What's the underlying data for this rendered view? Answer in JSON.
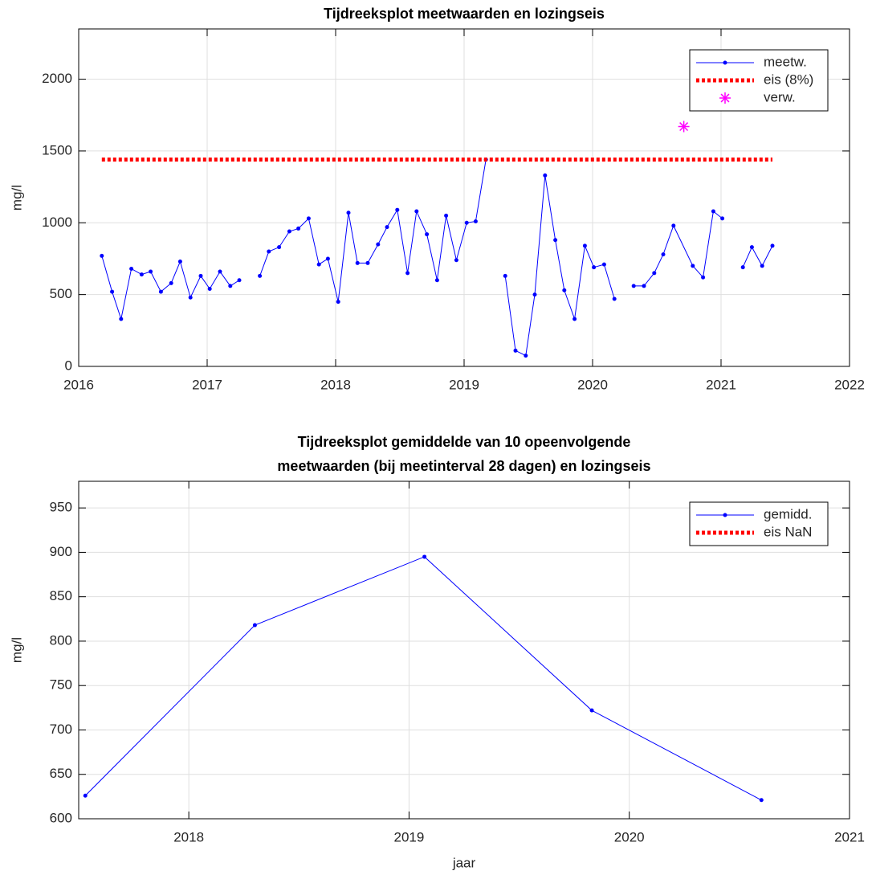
{
  "chart_data": [
    {
      "type": "line",
      "title": "Tijdreeksplot meetwaarden en lozingseis",
      "ylabel": "mg/l",
      "xlim": [
        2016,
        2022
      ],
      "xticks": [
        2016,
        2017,
        2018,
        2019,
        2020,
        2021,
        2022
      ],
      "ylim": [
        0,
        2350
      ],
      "yticks": [
        0,
        500,
        1000,
        1500,
        2000
      ],
      "grid": true,
      "legend": "northeast",
      "series": [
        {
          "name": "meetw.",
          "color": "#0000ff",
          "linestyle": "solid",
          "marker": "dot",
          "x": [
            2016.18,
            2016.26,
            2016.33,
            2016.41,
            2016.49,
            2016.56,
            2016.64,
            2016.72,
            2016.79,
            2016.87,
            2016.95,
            2017.02,
            2017.1,
            2017.18,
            2017.25,
            2017.33,
            2017.41,
            2017.48,
            2017.56,
            2017.64,
            2017.71,
            2017.79,
            2017.87,
            2017.94,
            2018.02,
            2018.1,
            2018.17,
            2018.25,
            2018.33,
            2018.4,
            2018.48,
            2018.56,
            2018.63,
            2018.71,
            2018.79,
            2018.86,
            2018.94,
            2019.02,
            2019.09,
            2019.17,
            2019.25,
            2019.32,
            2019.4,
            2019.48,
            2019.55,
            2019.63,
            2019.71,
            2019.78,
            2019.86,
            2019.94,
            2020.01,
            2020.09,
            2020.17,
            2020.25,
            2020.32,
            2020.4,
            2020.48,
            2020.55,
            2020.63,
            2020.78,
            2020.86,
            2020.94,
            2021.01,
            2021.09,
            2021.17,
            2021.24,
            2021.32,
            2021.4
          ],
          "values": [
            770,
            520,
            330,
            680,
            640,
            660,
            520,
            580,
            730,
            480,
            630,
            540,
            660,
            560,
            600,
            null,
            630,
            800,
            830,
            940,
            960,
            1030,
            710,
            750,
            450,
            1070,
            720,
            720,
            850,
            970,
            1090,
            650,
            1080,
            920,
            600,
            1050,
            740,
            1000,
            1010,
            1440,
            null,
            630,
            110,
            75,
            500,
            1330,
            880,
            530,
            330,
            840,
            690,
            710,
            470,
            null,
            560,
            560,
            650,
            780,
            980,
            700,
            620,
            1080,
            1030,
            null,
            690,
            830,
            700,
            840
          ]
        },
        {
          "name": "eis (8%)",
          "color": "#ff0000",
          "linestyle": "dotted",
          "marker": "none",
          "x": [
            2016.18,
            2021.4
          ],
          "values": [
            1440,
            1440
          ]
        },
        {
          "name": "verw.",
          "color": "#ff00ff",
          "linestyle": "none",
          "marker": "star",
          "x": [
            2020.71
          ],
          "values": [
            1670
          ]
        }
      ]
    },
    {
      "type": "line",
      "title": [
        "Tijdreeksplot gemiddelde van 10 opeenvolgende",
        "meetwaarden (bij meetinterval 28 dagen) en lozingseis"
      ],
      "ylabel": "mg/l",
      "xlabel": "jaar",
      "xlim": [
        2017.5,
        2021
      ],
      "xticks": [
        2018,
        2019,
        2020,
        2021
      ],
      "ylim": [
        600,
        980
      ],
      "yticks": [
        600,
        650,
        700,
        750,
        800,
        850,
        900,
        950
      ],
      "grid": true,
      "legend": "northeast",
      "series": [
        {
          "name": "gemidd.",
          "color": "#0000ff",
          "linestyle": "solid",
          "marker": "dot",
          "x": [
            2017.53,
            2018.3,
            2019.07,
            2019.83,
            2020.6
          ],
          "values": [
            626,
            818,
            895,
            722,
            621
          ]
        },
        {
          "name": "eis NaN",
          "color": "#ff0000",
          "linestyle": "dotted",
          "marker": "none",
          "x": [
            2017.53,
            2020.6
          ],
          "values": [
            null,
            null
          ]
        }
      ]
    }
  ]
}
